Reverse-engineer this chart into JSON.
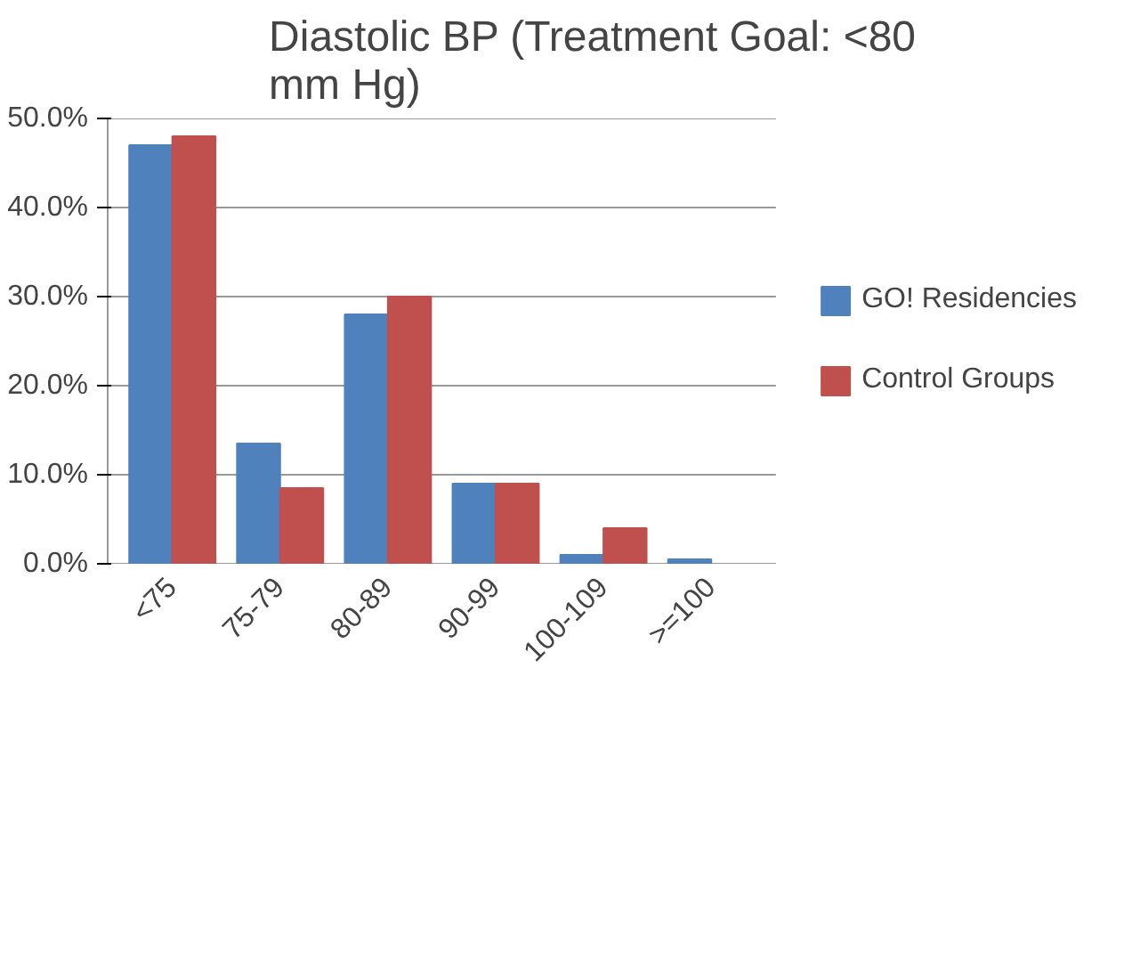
{
  "chart_data": {
    "type": "bar",
    "title": "Diastolic BP (Treatment Goal: <80\nmm Hg)",
    "categories": [
      "<75",
      "75-79",
      "80-89",
      "90-99",
      "100-109",
      ">=100"
    ],
    "series": [
      {
        "name": "GO! Residencies",
        "color": "#4f81bd",
        "values": [
          47,
          13.5,
          28,
          9,
          1,
          0.5
        ]
      },
      {
        "name": "Control Groups",
        "color": "#c0504d",
        "values": [
          48,
          8.5,
          30,
          9,
          4,
          null
        ]
      }
    ],
    "ylim": [
      0,
      50
    ],
    "yticks": [
      {
        "value": 0,
        "label": "0.0%"
      },
      {
        "value": 10,
        "label": "10.0%"
      },
      {
        "value": 20,
        "label": "20.0%"
      },
      {
        "value": 30,
        "label": "30.0%"
      },
      {
        "value": 40,
        "label": "40.0%"
      },
      {
        "value": 50,
        "label": "50.0%"
      }
    ],
    "grid": "y",
    "legend": "right"
  }
}
